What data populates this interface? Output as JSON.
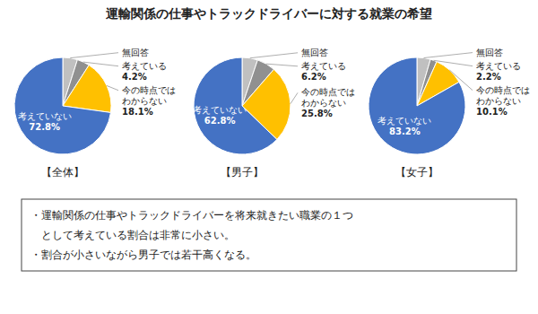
{
  "title": "運輸関係の仕事やトラックドライバーに対する就業の希望",
  "chart_data": [
    {
      "type": "pie",
      "title": "【全体】",
      "categories": [
        "無回答",
        "考えている",
        "今の時点ではわからない",
        "考えていない"
      ],
      "values": [
        4.9,
        4.2,
        18.1,
        72.8
      ],
      "value_labels": [
        null,
        "4.2%",
        "18.1%",
        "72.8%"
      ],
      "colors": [
        "#c0c0c0",
        "#909090",
        "#ffc000",
        "#4472c4"
      ],
      "data_labels": true
    },
    {
      "type": "pie",
      "title": "【男子】",
      "categories": [
        "無回答",
        "考えている",
        "今の時点ではわからない",
        "考えていない"
      ],
      "values": [
        5.2,
        6.2,
        25.8,
        62.8
      ],
      "value_labels": [
        null,
        "6.2%",
        "25.8%",
        "62.8%"
      ],
      "colors": [
        "#c0c0c0",
        "#909090",
        "#ffc000",
        "#4472c4"
      ],
      "data_labels": true
    },
    {
      "type": "pie",
      "title": "【女子】",
      "categories": [
        "無回答",
        "考えている",
        "今の時点ではわからない",
        "考えていない"
      ],
      "values": [
        4.5,
        2.2,
        10.1,
        83.2
      ],
      "value_labels": [
        null,
        "2.2%",
        "10.1%",
        "83.2%"
      ],
      "colors": [
        "#c0c0c0",
        "#909090",
        "#ffc000",
        "#4472c4"
      ],
      "data_labels": true
    }
  ],
  "annotations": [
    "・運輸関係の仕事やトラックドライバーを将来就きたい職業の１つ",
    "　として考えている割合は非常に小さい。",
    "・割合が小さいながら男子では若干高くなる。"
  ]
}
